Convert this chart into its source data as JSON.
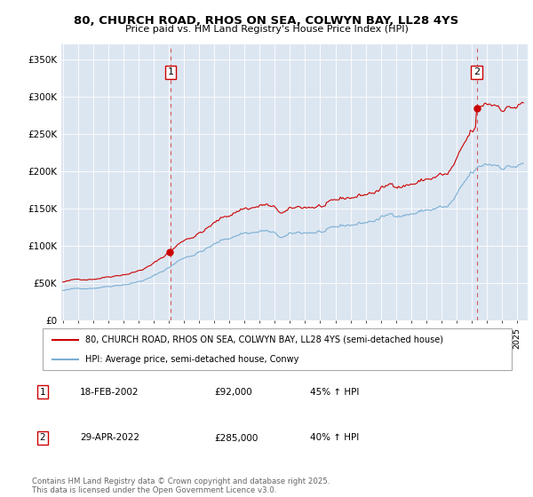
{
  "title": "80, CHURCH ROAD, RHOS ON SEA, COLWYN BAY, LL28 4YS",
  "subtitle": "Price paid vs. HM Land Registry's House Price Index (HPI)",
  "ylabel_ticks": [
    "£0",
    "£50K",
    "£100K",
    "£150K",
    "£200K",
    "£250K",
    "£300K",
    "£350K"
  ],
  "ytick_values": [
    0,
    50000,
    100000,
    150000,
    200000,
    250000,
    300000,
    350000
  ],
  "ylim": [
    0,
    370000
  ],
  "xlim_start": 1994.9,
  "xlim_end": 2025.7,
  "plot_bg_color": "#dce6f1",
  "red_line_color": "#cc0000",
  "blue_line_color": "#7bafd4",
  "marker1_date": 2002.12,
  "marker1_price": 92000,
  "marker2_date": 2022.33,
  "marker2_price": 285000,
  "legend1": "80, CHURCH ROAD, RHOS ON SEA, COLWYN BAY, LL28 4YS (semi-detached house)",
  "legend2": "HPI: Average price, semi-detached house, Conwy",
  "note1_label": "1",
  "note1_date": "18-FEB-2002",
  "note1_price": "£92,000",
  "note1_hpi": "45% ↑ HPI",
  "note2_label": "2",
  "note2_date": "29-APR-2022",
  "note2_price": "£285,000",
  "note2_hpi": "40% ↑ HPI",
  "footer": "Contains HM Land Registry data © Crown copyright and database right 2025.\nThis data is licensed under the Open Government Licence v3.0."
}
